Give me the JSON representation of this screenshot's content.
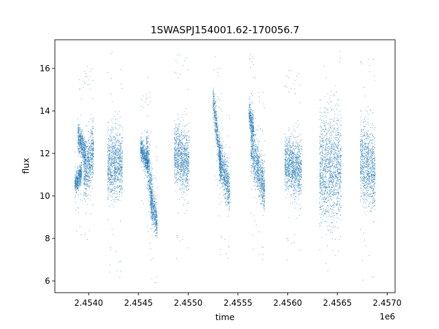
{
  "chart_data": {
    "type": "scatter",
    "title": "1SWASPJ154001.62-170056.7",
    "xlabel": "time",
    "ylabel": "flux",
    "x_offset_label": "1e6",
    "x_ticks": [
      2.454,
      2.4545,
      2.455,
      2.4555,
      2.456,
      2.4565,
      2.457
    ],
    "x_tick_labels": [
      "2.4540",
      "2.4545",
      "2.4550",
      "2.4555",
      "2.4560",
      "2.4565",
      "2.4570"
    ],
    "y_ticks": [
      6,
      8,
      10,
      12,
      14,
      16
    ],
    "y_tick_labels": [
      "6",
      "8",
      "10",
      "12",
      "14",
      "16"
    ],
    "xlim": [
      2.45366,
      2.45708
    ],
    "ylim": [
      5.45,
      17.35
    ],
    "grid": false,
    "legend": "none",
    "marker_color": "#1f77b4",
    "segments": [
      {
        "x_start": 2.45386,
        "x_end": 2.45393,
        "y_center": 10.8,
        "y_spread": 0.35,
        "y_trend": 0.3
      },
      {
        "x_start": 2.45389,
        "x_end": 2.45397,
        "y_center": 12.4,
        "y_spread": 0.5,
        "y_trend": -0.4
      },
      {
        "x_start": 2.45395,
        "x_end": 2.45405,
        "y_center": 11.6,
        "y_spread": 0.9,
        "y_trend": 0.6
      },
      {
        "x_start": 2.45419,
        "x_end": 2.45434,
        "y_center": 11.5,
        "y_spread": 1.1,
        "y_trend": 0.0
      },
      {
        "x_start": 2.45452,
        "x_end": 2.4546,
        "y_center": 11.9,
        "y_spread": 0.4,
        "y_trend": -0.4
      },
      {
        "x_start": 2.45458,
        "x_end": 2.45464,
        "y_center": 11.0,
        "y_spread": 0.9,
        "y_trend": -1.2
      },
      {
        "x_start": 2.45462,
        "x_end": 2.45469,
        "y_center": 9.3,
        "y_spread": 0.6,
        "y_trend": -0.6
      },
      {
        "x_start": 2.45486,
        "x_end": 2.45501,
        "y_center": 11.8,
        "y_spread": 1.0,
        "y_trend": -0.3
      },
      {
        "x_start": 2.45525,
        "x_end": 2.45533,
        "y_center": 13.0,
        "y_spread": 0.6,
        "y_trend": -1.6
      },
      {
        "x_start": 2.45531,
        "x_end": 2.45542,
        "y_center": 11.0,
        "y_spread": 0.7,
        "y_trend": -0.8
      },
      {
        "x_start": 2.45561,
        "x_end": 2.45566,
        "y_center": 13.5,
        "y_spread": 0.5,
        "y_trend": -0.5
      },
      {
        "x_start": 2.45563,
        "x_end": 2.45577,
        "y_center": 11.3,
        "y_spread": 0.8,
        "y_trend": -1.0
      },
      {
        "x_start": 2.45597,
        "x_end": 2.45614,
        "y_center": 11.4,
        "y_spread": 0.9,
        "y_trend": -0.2
      },
      {
        "x_start": 2.45632,
        "x_end": 2.45654,
        "y_center": 11.3,
        "y_spread": 1.8,
        "y_trend": 0.0
      },
      {
        "x_start": 2.45673,
        "x_end": 2.45688,
        "y_center": 11.4,
        "y_spread": 1.3,
        "y_trend": -0.3
      }
    ]
  }
}
